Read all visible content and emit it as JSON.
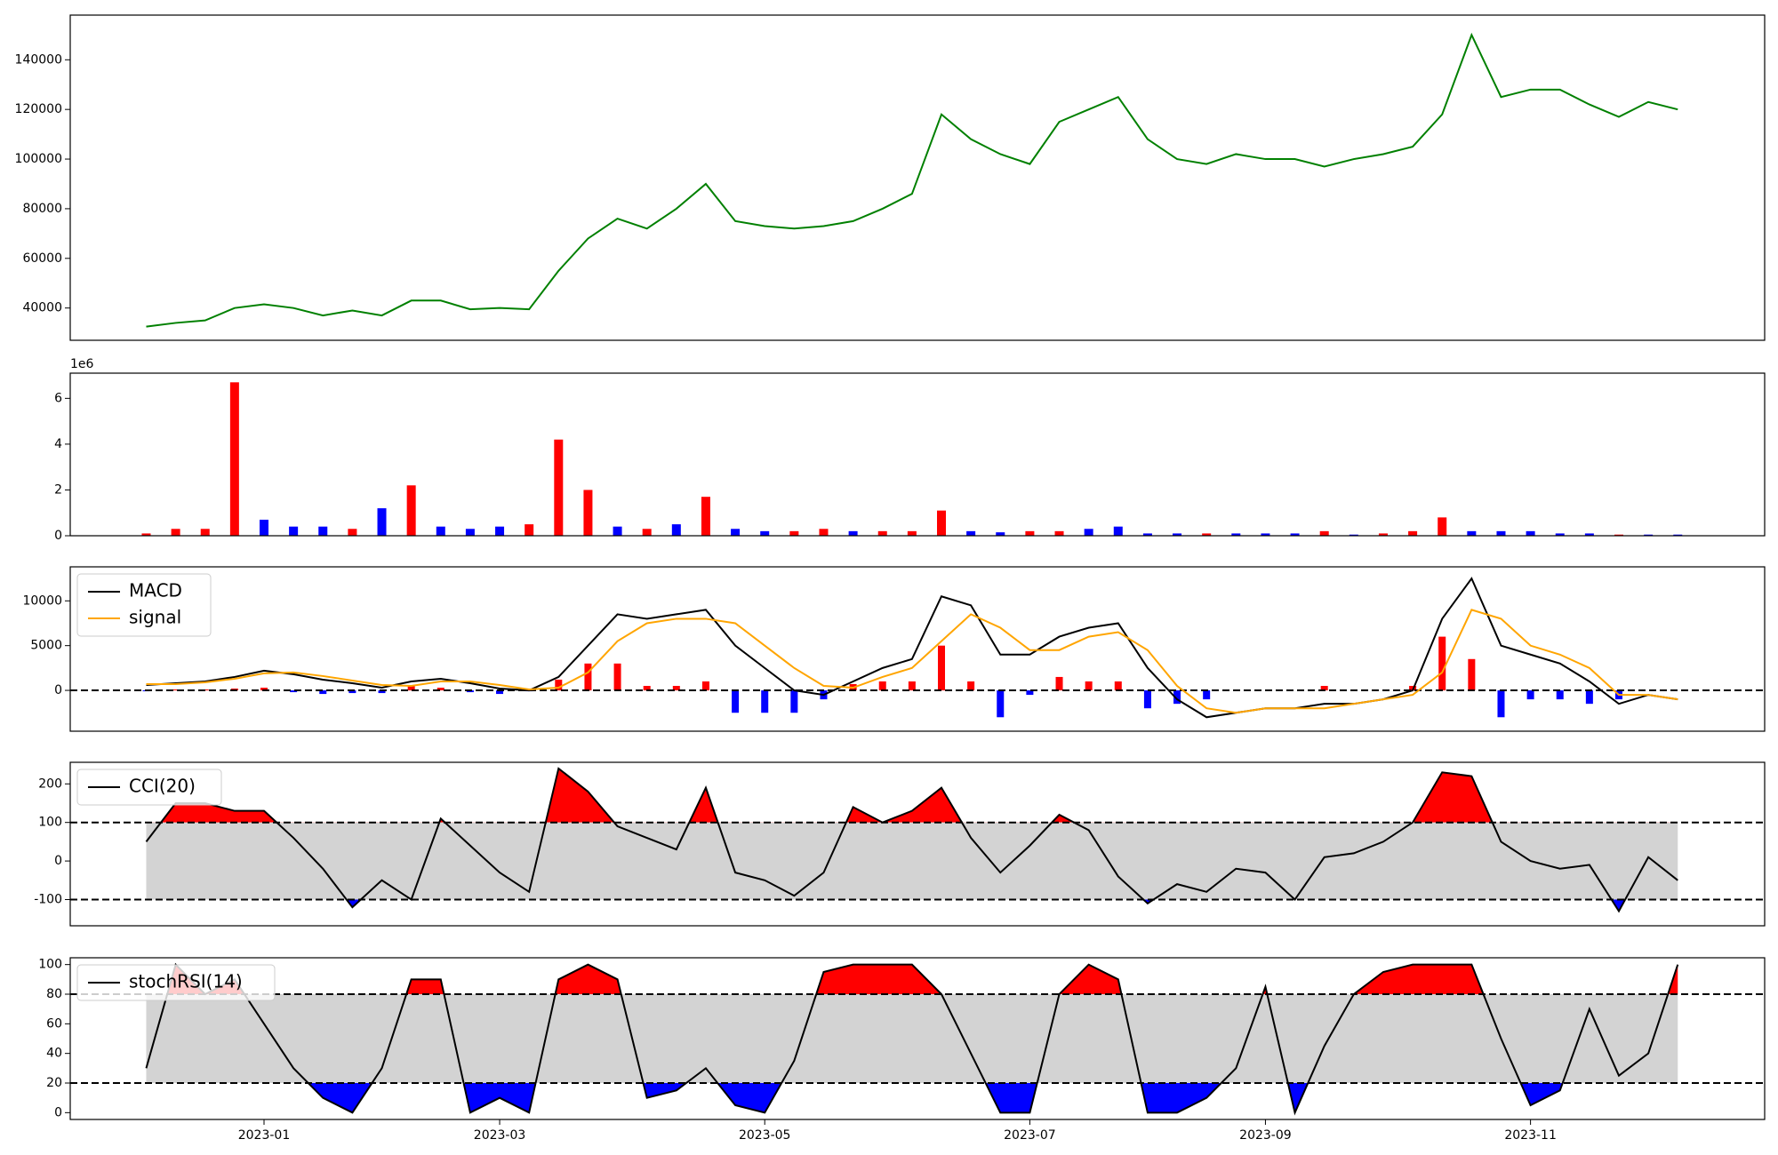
{
  "chart_data": [
    {
      "type": "line",
      "series": [
        {
          "color": "#008000",
          "values": [
            32500,
            34000,
            35000,
            40000,
            41500,
            40000,
            37000,
            39000,
            37000,
            43000,
            43000,
            39500,
            40000,
            39500,
            55000,
            68000,
            76000,
            72000,
            80000,
            90000,
            75000,
            73000,
            72000,
            73000,
            75000,
            80000,
            86000,
            118000,
            108000,
            102000,
            98000,
            115000,
            120000,
            125000,
            108000,
            100000,
            98000,
            102000,
            100000,
            100000,
            97000,
            100000,
            102000,
            105000,
            118000,
            150000,
            125000,
            128000,
            128000,
            122000,
            117000,
            123000,
            120000
          ]
        }
      ],
      "ylim": [
        27000,
        158000
      ],
      "yticks": [
        40000,
        60000,
        80000,
        100000,
        120000,
        140000
      ]
    },
    {
      "type": "bar",
      "offset_label": "1e6",
      "values": [
        0.1,
        0.3,
        0.3,
        6.7,
        0.7,
        0.4,
        0.4,
        0.3,
        1.2,
        2.2,
        0.4,
        0.3,
        0.4,
        0.5,
        4.2,
        2.0,
        0.4,
        0.3,
        0.5,
        1.7,
        0.3,
        0.2,
        0.2,
        0.3,
        0.2,
        0.2,
        0.2,
        1.1,
        0.2,
        0.15,
        0.2,
        0.2,
        0.3,
        0.4,
        0.1,
        0.1,
        0.1,
        0.1,
        0.1,
        0.1,
        0.2,
        0.05,
        0.1,
        0.2,
        0.8,
        0.2,
        0.2,
        0.2,
        0.1,
        0.1,
        0.05,
        0.05,
        0.05
      ],
      "colors": [
        "#ff0000",
        "#ff0000",
        "#ff0000",
        "#ff0000",
        "#0000ff",
        "#0000ff",
        "#0000ff",
        "#ff0000",
        "#0000ff",
        "#ff0000",
        "#0000ff",
        "#0000ff",
        "#0000ff",
        "#ff0000",
        "#ff0000",
        "#ff0000",
        "#0000ff",
        "#ff0000",
        "#0000ff",
        "#ff0000",
        "#0000ff",
        "#0000ff",
        "#ff0000",
        "#ff0000",
        "#0000ff",
        "#ff0000",
        "#ff0000",
        "#ff0000",
        "#0000ff",
        "#0000ff",
        "#ff0000",
        "#ff0000",
        "#0000ff",
        "#0000ff",
        "#0000ff",
        "#0000ff",
        "#ff0000",
        "#0000ff",
        "#0000ff",
        "#0000ff",
        "#ff0000",
        "#0000ff",
        "#ff0000",
        "#ff0000",
        "#ff0000",
        "#0000ff",
        "#0000ff",
        "#0000ff",
        "#0000ff",
        "#0000ff",
        "#ff0000",
        "#0000ff",
        "#0000ff"
      ],
      "ylim": [
        0,
        7.1
      ],
      "yticks": [
        0,
        2,
        4,
        6
      ]
    },
    {
      "type": "macd",
      "series": [
        {
          "name": "MACD",
          "color": "#000000",
          "values": [
            600,
            800,
            1000,
            1500,
            2200,
            1800,
            1200,
            800,
            300,
            1000,
            1300,
            800,
            200,
            0,
            1500,
            5000,
            8500,
            8000,
            8500,
            9000,
            5000,
            2500,
            0,
            -500,
            1000,
            2500,
            3500,
            10500,
            9500,
            4000,
            4000,
            6000,
            7000,
            7500,
            2500,
            -1000,
            -3000,
            -2500,
            -2000,
            -2000,
            -1500,
            -1500,
            -1000,
            0,
            8000,
            12500,
            5000,
            4000,
            3000,
            1000,
            -1500,
            -500,
            -1000
          ]
        },
        {
          "name": "signal",
          "color": "#ffa500",
          "values": [
            700,
            700,
            900,
            1300,
            1900,
            2000,
            1600,
            1100,
            600,
            500,
            1000,
            1000,
            600,
            100,
            300,
            2000,
            5500,
            7500,
            8000,
            8000,
            7500,
            5000,
            2500,
            500,
            300,
            1500,
            2500,
            5500,
            8500,
            7000,
            4500,
            4500,
            6000,
            6500,
            4500,
            500,
            -2000,
            -2500,
            -2000,
            -2000,
            -2000,
            -1500,
            -1000,
            -500,
            2000,
            9000,
            8000,
            5000,
            4000,
            2500,
            -500,
            -500,
            -1000
          ]
        }
      ],
      "histogram": {
        "pos_color": "#ff0000",
        "neg_color": "#0000ff",
        "values": [
          -100,
          100,
          100,
          200,
          300,
          -200,
          -400,
          -300,
          -300,
          500,
          300,
          -200,
          -400,
          -100,
          1200,
          3000,
          3000,
          500,
          500,
          1000,
          -2500,
          -2500,
          -2500,
          -1000,
          700,
          1000,
          1000,
          5000,
          1000,
          -3000,
          -500,
          1500,
          1000,
          1000,
          -2000,
          -1500,
          -1000,
          0,
          0,
          0,
          500,
          0,
          0,
          500,
          6000,
          3500,
          -3000,
          -1000,
          -1000,
          -1500,
          -1000,
          0,
          0
        ]
      },
      "hline": 0,
      "ylim": [
        -4560,
        13800
      ],
      "yticks": [
        0,
        5000,
        10000
      ]
    },
    {
      "type": "oscillator",
      "series": [
        {
          "name": "CCI(20)",
          "color": "#000000",
          "values": [
            50,
            150,
            150,
            130,
            130,
            60,
            -20,
            -120,
            -50,
            -100,
            110,
            40,
            -30,
            -80,
            240,
            180,
            90,
            60,
            30,
            190,
            -30,
            -50,
            -90,
            -30,
            140,
            100,
            130,
            190,
            60,
            -30,
            40,
            120,
            80,
            -40,
            -110,
            -60,
            -80,
            -20,
            -30,
            -100,
            10,
            20,
            50,
            100,
            230,
            220,
            50,
            0,
            -20,
            -10,
            -130,
            10,
            -50
          ]
        }
      ],
      "bands": {
        "upper": 100,
        "lower": -100,
        "upper_color": "#ff0000",
        "lower_color": "#0000ff",
        "band_color": "#d3d3d3"
      },
      "ylim": [
        -168,
        256
      ],
      "yticks": [
        -100,
        0,
        100,
        200
      ]
    },
    {
      "type": "oscillator",
      "series": [
        {
          "name": "stochRSI(14)",
          "color": "#000000",
          "values": [
            30,
            100,
            80,
            90,
            60,
            30,
            10,
            0,
            30,
            90,
            90,
            0,
            10,
            0,
            90,
            100,
            90,
            10,
            15,
            30,
            5,
            0,
            35,
            95,
            100,
            100,
            100,
            80,
            40,
            0,
            0,
            80,
            100,
            90,
            0,
            0,
            10,
            30,
            85,
            0,
            45,
            80,
            95,
            100,
            100,
            100,
            50,
            5,
            15,
            70,
            25,
            40,
            100
          ]
        }
      ],
      "bands": {
        "upper": 80,
        "lower": 20,
        "upper_color": "#ff0000",
        "lower_color": "#0000ff",
        "band_color": "#d3d3d3"
      },
      "ylim": [
        -4.6,
        104.6
      ],
      "yticks": [
        0,
        20,
        40,
        60,
        80,
        100
      ],
      "categories": [
        null,
        null,
        null,
        null,
        "2023-01",
        null,
        null,
        null,
        null,
        null,
        null,
        null,
        "2023-03",
        null,
        null,
        null,
        null,
        null,
        null,
        null,
        null,
        "2023-05",
        null,
        null,
        null,
        null,
        null,
        null,
        null,
        null,
        "2023-07",
        null,
        null,
        null,
        null,
        null,
        null,
        null,
        "2023-09",
        null,
        null,
        null,
        null,
        null,
        null,
        null,
        null,
        "2023-11",
        null,
        null,
        null,
        null,
        null
      ]
    }
  ]
}
